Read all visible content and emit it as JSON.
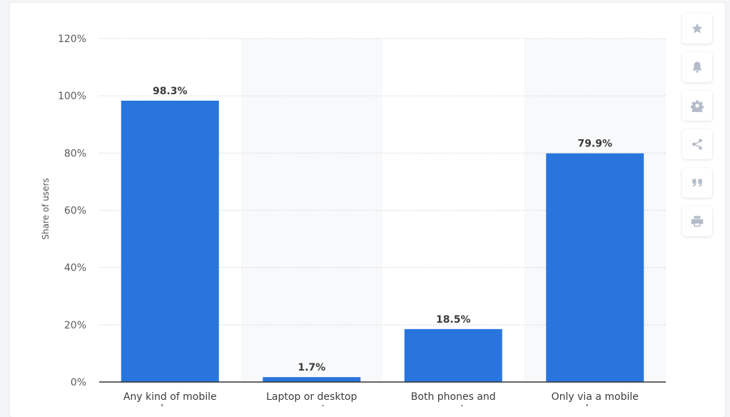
{
  "chart_data": {
    "type": "bar",
    "categories": [
      "Any kind of mobile phone",
      "Laptop or desktop computer",
      "Both phones and computers",
      "Only via a mobile phone"
    ],
    "values": [
      98.3,
      1.7,
      18.5,
      79.9
    ],
    "data_labels": [
      "98.3%",
      "1.7%",
      "18.5%",
      "79.9%"
    ],
    "ylabel": "Share of users",
    "ylim": [
      0,
      120
    ],
    "y_ticks": [
      0,
      20,
      40,
      60,
      80,
      100,
      120
    ],
    "y_tick_labels": [
      "0%",
      "20%",
      "40%",
      "60%",
      "80%",
      "100%",
      "120%"
    ],
    "grid": true,
    "bar_color": "#2876dd",
    "band_color": "#f8f9fa"
  },
  "toolbar": {
    "buttons": [
      {
        "name": "favorite-button",
        "icon": "star-icon"
      },
      {
        "name": "notification-button",
        "icon": "bell-icon"
      },
      {
        "name": "settings-button",
        "icon": "gear-icon"
      },
      {
        "name": "share-button",
        "icon": "share-icon"
      },
      {
        "name": "cite-button",
        "icon": "quote-icon"
      },
      {
        "name": "print-button",
        "icon": "printer-icon"
      }
    ]
  }
}
